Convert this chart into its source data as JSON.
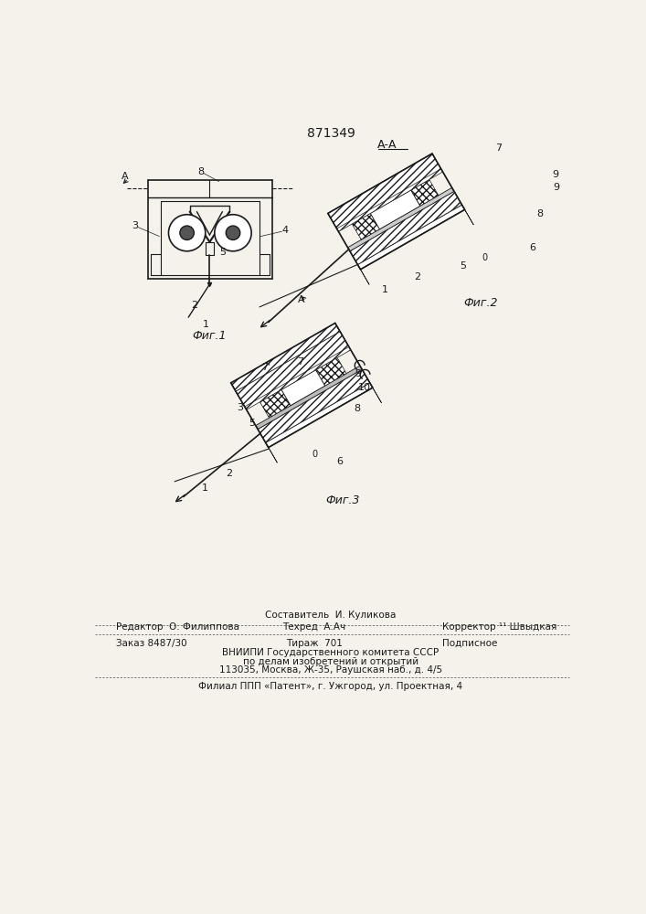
{
  "patent_number": "871349",
  "bg_color": "#f5f2ec",
  "fig_caption1": "Фиг.1",
  "fig_caption2": "Фиг.2",
  "fig_caption3": "Фиг.3",
  "footer_line1_center_top": "Составитель  И. Куликова",
  "footer_line1_left": "Редактор  О. Филиппова",
  "footer_line1_center": "Техред  А.Ач",
  "footer_line1_right": "Корректор ¹¹ Швыдкая",
  "footer_line2_left": "Заказ 8487/30",
  "footer_line2_center": "Тираж  701",
  "footer_line2_right": "Подписное",
  "footer_line3": "ВНИИПИ Государственного комитета СССР",
  "footer_line4": "по делам изобретений и открытий",
  "footer_line5": "113035, Москва, Ж-35, Раушская наб., д. 4/5",
  "footer_last": "Филиал ППП «Патент», г. Ужгород, ул. Проектная, 4",
  "lc": "#1a1a1a"
}
